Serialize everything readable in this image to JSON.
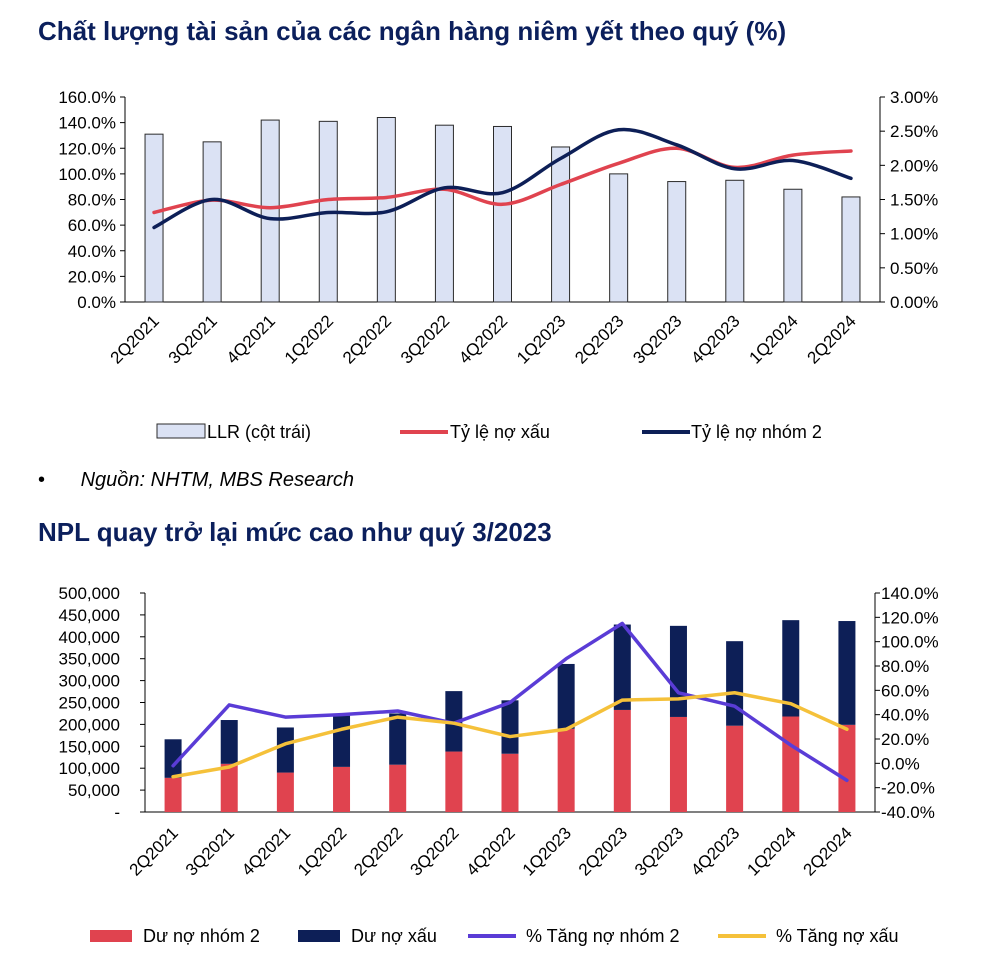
{
  "source": {
    "bullet": "•",
    "text": "Nguồn: NHTM, MBS Research"
  },
  "colors": {
    "title": "#0b1f5c",
    "llr_fill": "#dbe2f4",
    "llr_stroke": "#2b2b2b",
    "npl_red": "#e0434f",
    "group2_navy": "#0d1f57",
    "purple": "#5a3cd6",
    "yellow": "#f5c13a"
  },
  "chart_data": [
    {
      "type": "bar",
      "title": "Chất lượng tài sản của các ngân hàng niêm yết theo quý (%)",
      "categories": [
        "2Q2021",
        "3Q2021",
        "4Q2021",
        "1Q2022",
        "2Q2022",
        "3Q2022",
        "4Q2022",
        "1Q2023",
        "2Q2023",
        "3Q2023",
        "4Q2023",
        "1Q2024",
        "2Q2024"
      ],
      "ylim_left": [
        0,
        160
      ],
      "ylim_right": [
        0,
        3.0
      ],
      "left_ticks": [
        "160.0%",
        "140.0%",
        "120.0%",
        "100.0%",
        "80.0%",
        "60.0%",
        "40.0%",
        "20.0%",
        "0.0%"
      ],
      "right_ticks": [
        "3.00%",
        "2.50%",
        "2.00%",
        "1.50%",
        "1.00%",
        "0.50%",
        "0.00%"
      ],
      "bar_series": {
        "name": "LLR (cột trái)",
        "axis": "left",
        "values": [
          131,
          125,
          142,
          141,
          144,
          138,
          137,
          121,
          100,
          94,
          95,
          88,
          82
        ]
      },
      "line_series": [
        {
          "name": "Tỷ lệ nợ xấu",
          "axis": "right",
          "values": [
            1.31,
            1.49,
            1.38,
            1.5,
            1.53,
            1.65,
            1.43,
            1.72,
            2.03,
            2.25,
            1.97,
            2.15,
            2.21
          ]
        },
        {
          "name": "Tỷ lệ nợ nhóm 2",
          "axis": "right",
          "values": [
            1.09,
            1.5,
            1.22,
            1.31,
            1.32,
            1.67,
            1.6,
            2.1,
            2.52,
            2.3,
            1.95,
            2.07,
            1.81
          ]
        }
      ],
      "legend": [
        "LLR (cột trái)",
        "Tỷ lệ nợ xấu",
        "Tỷ lệ nợ nhóm 2"
      ]
    },
    {
      "type": "bar",
      "title": "NPL quay trở lại mức cao như quý 3/2023",
      "categories": [
        "2Q2021",
        "3Q2021",
        "4Q2021",
        "1Q2022",
        "2Q2022",
        "3Q2022",
        "4Q2022",
        "1Q2023",
        "2Q2023",
        "3Q2023",
        "4Q2023",
        "1Q2024",
        "2Q2024"
      ],
      "ylim_left": [
        0,
        500000
      ],
      "ylim_right": [
        -40,
        140
      ],
      "left_ticks": [
        "500,000",
        "450,000",
        "400,000",
        "350,000",
        "300,000",
        "250,000",
        "200,000",
        "150,000",
        "100,000",
        "50,000",
        "-"
      ],
      "right_ticks": [
        "140.0%",
        "120.0%",
        "100.0%",
        "80.0%",
        "60.0%",
        "40.0%",
        "20.0%",
        "0.0%",
        "-20.0%",
        "-40.0%"
      ],
      "stacked_series": [
        {
          "name": "Dư nợ nhóm 2",
          "values": [
            78000,
            110000,
            90000,
            103000,
            108000,
            138000,
            133000,
            190000,
            233000,
            217000,
            197000,
            218000,
            199000
          ]
        },
        {
          "name": "Dư nợ xấu",
          "values": [
            88000,
            100000,
            103000,
            117000,
            117000,
            138000,
            122000,
            148000,
            195000,
            208000,
            193000,
            220000,
            237000
          ]
        }
      ],
      "line_series": [
        {
          "name": "% Tăng nợ nhóm 2",
          "axis": "right",
          "values": [
            -2,
            48,
            38,
            40,
            43,
            33,
            50,
            86,
            115,
            58,
            47,
            15,
            -14
          ]
        },
        {
          "name": "% Tăng nợ xấu",
          "axis": "right",
          "values": [
            -11,
            -3,
            16,
            28,
            38,
            33,
            22,
            28,
            52,
            53,
            58,
            49,
            28
          ]
        }
      ],
      "legend": [
        "Dư nợ nhóm 2",
        "Dư nợ xấu",
        "% Tăng nợ nhóm 2",
        "% Tăng nợ xấu"
      ]
    }
  ]
}
